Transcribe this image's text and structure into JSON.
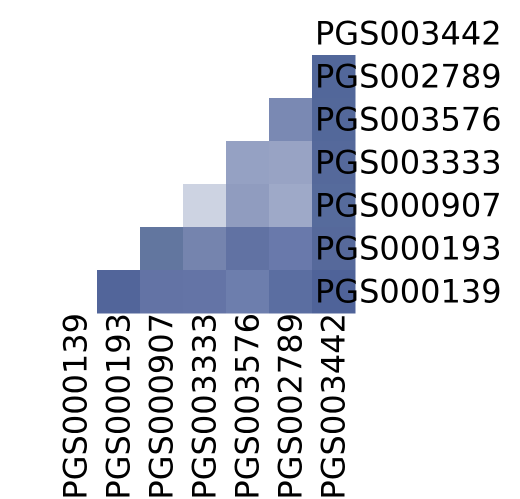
{
  "chart_data": {
    "type": "heatmap",
    "title": "",
    "xlabel": "",
    "ylabel": "",
    "x_categories": [
      "PGS000139",
      "PGS000193",
      "PGS000907",
      "PGS003333",
      "PGS003576",
      "PGS002789",
      "PGS003442"
    ],
    "y_categories_top_to_bottom": [
      "PGS003442",
      "PGS002789",
      "PGS003576",
      "PGS003333",
      "PGS000907",
      "PGS000193",
      "PGS000139"
    ],
    "shape": "lower-triangular",
    "rows": [
      {
        "row": "PGS002789",
        "cells": [
          {
            "col": "PGS003442",
            "color": "#52679a"
          }
        ]
      },
      {
        "row": "PGS003576",
        "cells": [
          {
            "col": "PGS002789",
            "color": "#7a89b3"
          },
          {
            "col": "PGS003442",
            "color": "#53689a"
          }
        ]
      },
      {
        "row": "PGS003333",
        "cells": [
          {
            "col": "PGS003576",
            "color": "#95a1c3"
          },
          {
            "col": "PGS002789",
            "color": "#98a3c4"
          },
          {
            "col": "PGS003442",
            "color": "#55699b"
          }
        ]
      },
      {
        "row": "PGS000907",
        "cells": [
          {
            "col": "PGS003333",
            "color": "#cdd3e2"
          },
          {
            "col": "PGS003576",
            "color": "#909cbf"
          },
          {
            "col": "PGS002789",
            "color": "#9ea9c8"
          },
          {
            "col": "PGS003442",
            "color": "#566b9c"
          }
        ]
      },
      {
        "row": "PGS000193",
        "cells": [
          {
            "col": "PGS000907",
            "color": "#62769f"
          },
          {
            "col": "PGS003333",
            "color": "#7584ae"
          },
          {
            "col": "PGS003576",
            "color": "#6172a3"
          },
          {
            "col": "PGS002789",
            "color": "#6979ab"
          },
          {
            "col": "PGS003442",
            "color": "#56699b"
          }
        ]
      },
      {
        "row": "PGS000139",
        "cells": [
          {
            "col": "PGS000193",
            "color": "#52659a"
          },
          {
            "col": "PGS000907",
            "color": "#6373a5"
          },
          {
            "col": "PGS003333",
            "color": "#6474a6"
          },
          {
            "col": "PGS003576",
            "color": "#6d7ead"
          },
          {
            "col": "PGS002789",
            "color": "#5b6ea1"
          },
          {
            "col": "PGS003442",
            "color": "#4f6399"
          }
        ]
      }
    ],
    "colorbar": "none",
    "grid": false,
    "legend": "none"
  }
}
